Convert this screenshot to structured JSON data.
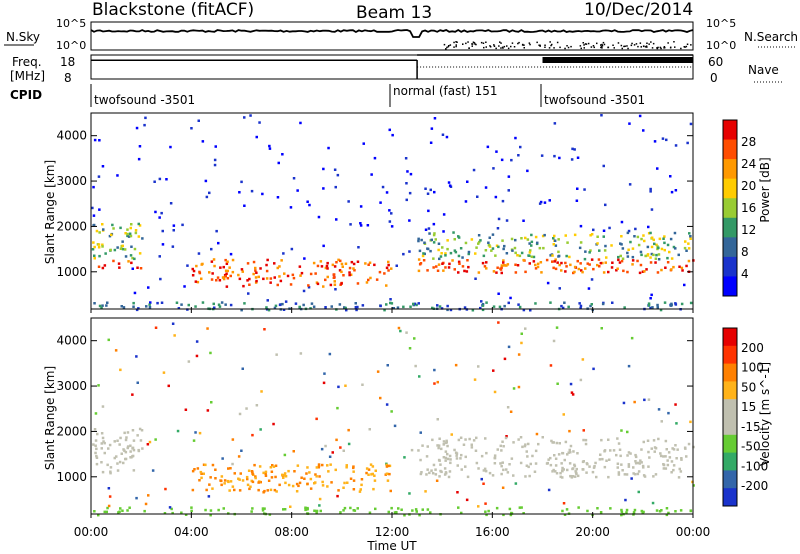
{
  "header": {
    "station": "Blackstone (fitACF)",
    "beam": "Beam 13",
    "date": "10/Dec/2014"
  },
  "colors": {
    "power_scale": [
      "#e60000",
      "#ff4d00",
      "#ff9900",
      "#ffcc00",
      "#99cc33",
      "#339966",
      "#336699",
      "#1a33cc",
      "#0000ff"
    ],
    "velocity_scale": [
      "#e60000",
      "#ff3300",
      "#ff8000",
      "#ffb31a",
      "#c0c0b0",
      "#c0c0b0",
      "#66cc33",
      "#33aa66",
      "#3366aa",
      "#1a33cc"
    ]
  },
  "chart_data": [
    {
      "type": "line",
      "name": "noise-panel",
      "left_label": "N.Sky",
      "right_label": "N.Search",
      "left_ticks": [
        "10^5",
        "10^0"
      ],
      "right_ticks": [
        "10^5",
        "10^0"
      ]
    },
    {
      "type": "line",
      "name": "freq-panel",
      "left_label_top": "Freq.",
      "left_label_unit": "[MHz]",
      "right_label": "Nave",
      "left_ticks": [
        "18",
        "8"
      ],
      "right_ticks": [
        "60",
        "0"
      ],
      "segments": [
        {
          "x_start": 0,
          "x_end": 13,
          "freq_level": 0.78
        },
        {
          "x_start": 13,
          "x_end": 24,
          "freq_level": 1.0
        }
      ]
    },
    {
      "type": "table",
      "name": "cpid-panel",
      "label": "CPID",
      "modes": [
        {
          "start": 0,
          "name": "twofsound -3501"
        },
        {
          "start": 12,
          "name": "normal (fast) 151"
        },
        {
          "start": 18,
          "name": "twofsound -3501"
        }
      ]
    },
    {
      "type": "heatmap",
      "name": "power-panel",
      "ylabel": "Slant Range [km]",
      "colorbar_label": "Power [dB]",
      "colorbar_ticks": [
        "28",
        "24",
        "20",
        "16",
        "12",
        "8",
        "4"
      ],
      "y_ticks": [
        "4000",
        "3000",
        "2000",
        "1000"
      ],
      "ylim": [
        180,
        4500
      ],
      "xlim": [
        0,
        24
      ]
    },
    {
      "type": "heatmap",
      "name": "velocity-panel",
      "ylabel": "Slant Range [km]",
      "colorbar_label": "Velocity [m s^-1]",
      "colorbar_ticks": [
        "200",
        "100",
        "50",
        "15",
        "-15",
        "-50",
        "-100",
        "-200"
      ],
      "y_ticks": [
        "4000",
        "3000",
        "2000",
        "1000"
      ],
      "ylim": [
        180,
        4500
      ],
      "xlim": [
        0,
        24
      ]
    }
  ],
  "x_axis": {
    "ticks": [
      "00:00",
      "04:00",
      "08:00",
      "12:00",
      "16:00",
      "20:00",
      "00:00"
    ],
    "tick_hours": [
      0,
      4,
      8,
      12,
      16,
      20,
      24
    ],
    "label": "Time UT"
  }
}
